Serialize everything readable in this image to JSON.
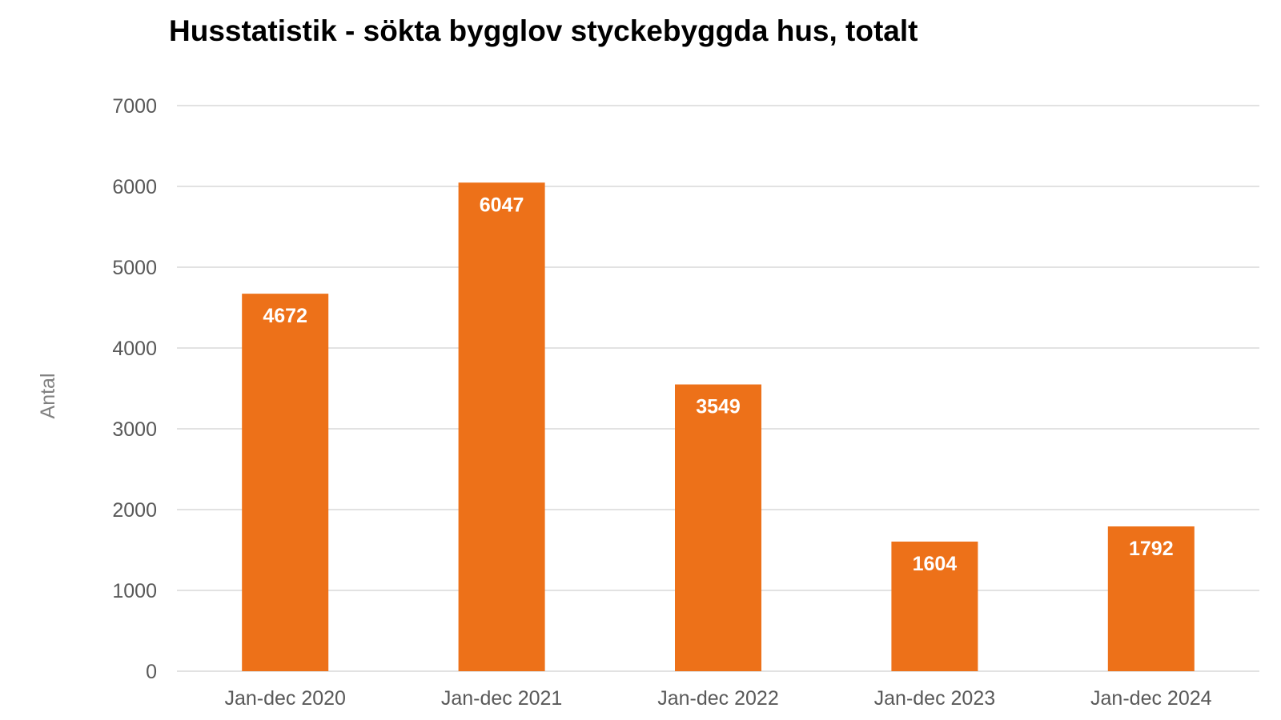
{
  "chart_data": {
    "type": "bar",
    "title": "Husstatistik - sökta bygglov styckebyggda hus, totalt",
    "xlabel": "",
    "ylabel": "Antal",
    "categories": [
      "Jan-dec 2020",
      "Jan-dec 2021",
      "Jan-dec 2022",
      "Jan-dec 2023",
      "Jan-dec 2024"
    ],
    "values": [
      4672,
      6047,
      3549,
      1604,
      1792
    ],
    "data_labels": [
      "4672",
      "6047",
      "3549",
      "1604",
      "1792"
    ],
    "ylim": [
      0,
      7000
    ],
    "yticks": [
      0,
      1000,
      2000,
      3000,
      4000,
      5000,
      6000,
      7000
    ],
    "ytick_labels": [
      "0",
      "1000",
      "2000",
      "3000",
      "4000",
      "5000",
      "6000",
      "7000"
    ],
    "grid": true,
    "legend": "none",
    "colors": {
      "bar": "#ED7119",
      "grid": "#D9D9D9",
      "tick_text": "#595959",
      "axis_title": "#808080",
      "data_label": "#FFFFFF",
      "title": "#000000"
    }
  }
}
